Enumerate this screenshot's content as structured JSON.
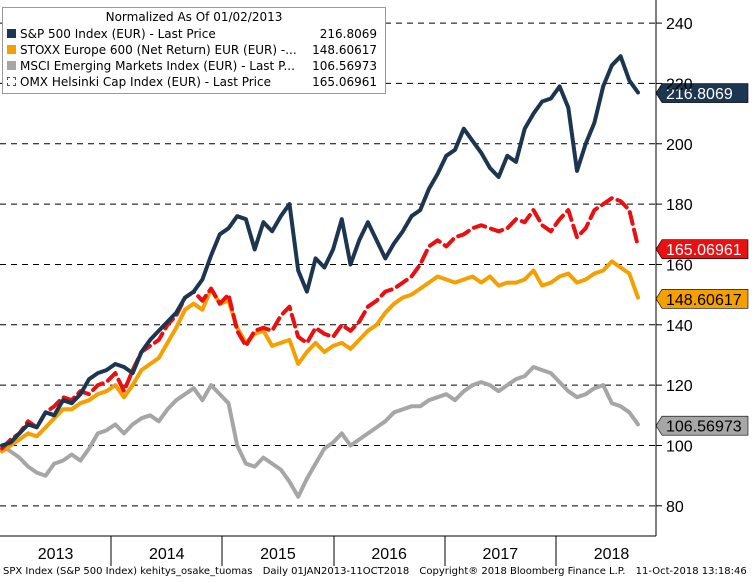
{
  "chart_data": {
    "type": "line",
    "title": "Normalized As Of 01/02/2013",
    "x_labels": [
      "2013",
      "2014",
      "2015",
      "2016",
      "2017",
      "2018"
    ],
    "ylim": [
      70,
      245
    ],
    "y_ticks": [
      80,
      100,
      120,
      140,
      160,
      180,
      200,
      220,
      240
    ],
    "grid": true,
    "legend_position": "top-left",
    "series": [
      {
        "name": "S&P 500 Index (EUR) - Last Price",
        "last_value": "216.8069",
        "color": "#1c3550",
        "dashed": false,
        "values": [
          100,
          101,
          104,
          107,
          106,
          111,
          110,
          115,
          114,
          117,
          122,
          124,
          125,
          127,
          126,
          124,
          131,
          135,
          138,
          141,
          144,
          149,
          151,
          155,
          163,
          170,
          172,
          176,
          175,
          165,
          174,
          171,
          176,
          180,
          158,
          151,
          162,
          159,
          165,
          175,
          160,
          168,
          174,
          168,
          162,
          167,
          171,
          176,
          178,
          185,
          190,
          196,
          198,
          205,
          201,
          197,
          192,
          189,
          196,
          194,
          205,
          210,
          214,
          215,
          219,
          212,
          191,
          200,
          207,
          219,
          226,
          229,
          221,
          217
        ]
      },
      {
        "name": "OMX Helsinki Cap Index (EUR) - Last Price",
        "last_value": "165.06961",
        "color": "#e81010",
        "dashed": true,
        "values": [
          99,
          102,
          104,
          108,
          106,
          111,
          113,
          116,
          115,
          118,
          117,
          120,
          121,
          124,
          118,
          125,
          131,
          133,
          135,
          140,
          143,
          149,
          151,
          148,
          152,
          147,
          150,
          138,
          133,
          138,
          139,
          138,
          143,
          146,
          136,
          134,
          139,
          137,
          136,
          140,
          138,
          141,
          146,
          148,
          151,
          152,
          154,
          156,
          160,
          166,
          168,
          166,
          169,
          170,
          172,
          173,
          172,
          171,
          172,
          175,
          174,
          178,
          173,
          171,
          175,
          178,
          169,
          172,
          178,
          180,
          182,
          181,
          178,
          166
        ]
      },
      {
        "name": "STOXX Europe 600 (Net Return) EUR (EUR) -...",
        "last_value": "148.60617",
        "color": "#f5a000",
        "dashed": false,
        "values": [
          98,
          100,
          102,
          104,
          103,
          106,
          109,
          112,
          112,
          114,
          115,
          117,
          118,
          120,
          116,
          120,
          125,
          127,
          129,
          134,
          139,
          145,
          147,
          145,
          152,
          147,
          148,
          139,
          134,
          137,
          138,
          133,
          134,
          135,
          127,
          131,
          134,
          131,
          133,
          134,
          132,
          135,
          138,
          140,
          144,
          147,
          149,
          150,
          152,
          154,
          156,
          155,
          154,
          155,
          156,
          154,
          156,
          153,
          154,
          154,
          155,
          158,
          153,
          154,
          156,
          157,
          154,
          155,
          157,
          158,
          161,
          159,
          157,
          149
        ]
      },
      {
        "name": "MSCI Emerging Markets Index (EUR) - Last P...",
        "last_value": "106.56973",
        "color": "#a6a6a6",
        "dashed": false,
        "values": [
          100,
          98,
          96,
          93,
          91,
          90,
          94,
          95,
          97,
          95,
          99,
          104,
          105,
          107,
          104,
          107,
          109,
          110,
          108,
          112,
          115,
          117,
          119,
          115,
          120,
          117,
          114,
          100,
          94,
          93,
          96,
          94,
          92,
          88,
          83,
          89,
          94,
          99,
          101,
          104,
          100,
          102,
          104,
          106,
          108,
          111,
          112,
          113,
          113,
          115,
          116,
          117,
          115,
          118,
          120,
          121,
          120,
          118,
          120,
          122,
          123,
          126,
          125,
          124,
          121,
          118,
          116,
          117,
          119,
          120,
          114,
          113,
          111,
          107
        ]
      }
    ]
  },
  "footer": {
    "left": "SPX Index (S&P 500 Index) kehitys_osake_tuomas",
    "middle": "Daily 01JAN2013-11OCT2018",
    "right": "Copyright® 2018 Bloomberg Finance L.P.",
    "timestamp": "11-Oct-2018 13:18:46"
  }
}
